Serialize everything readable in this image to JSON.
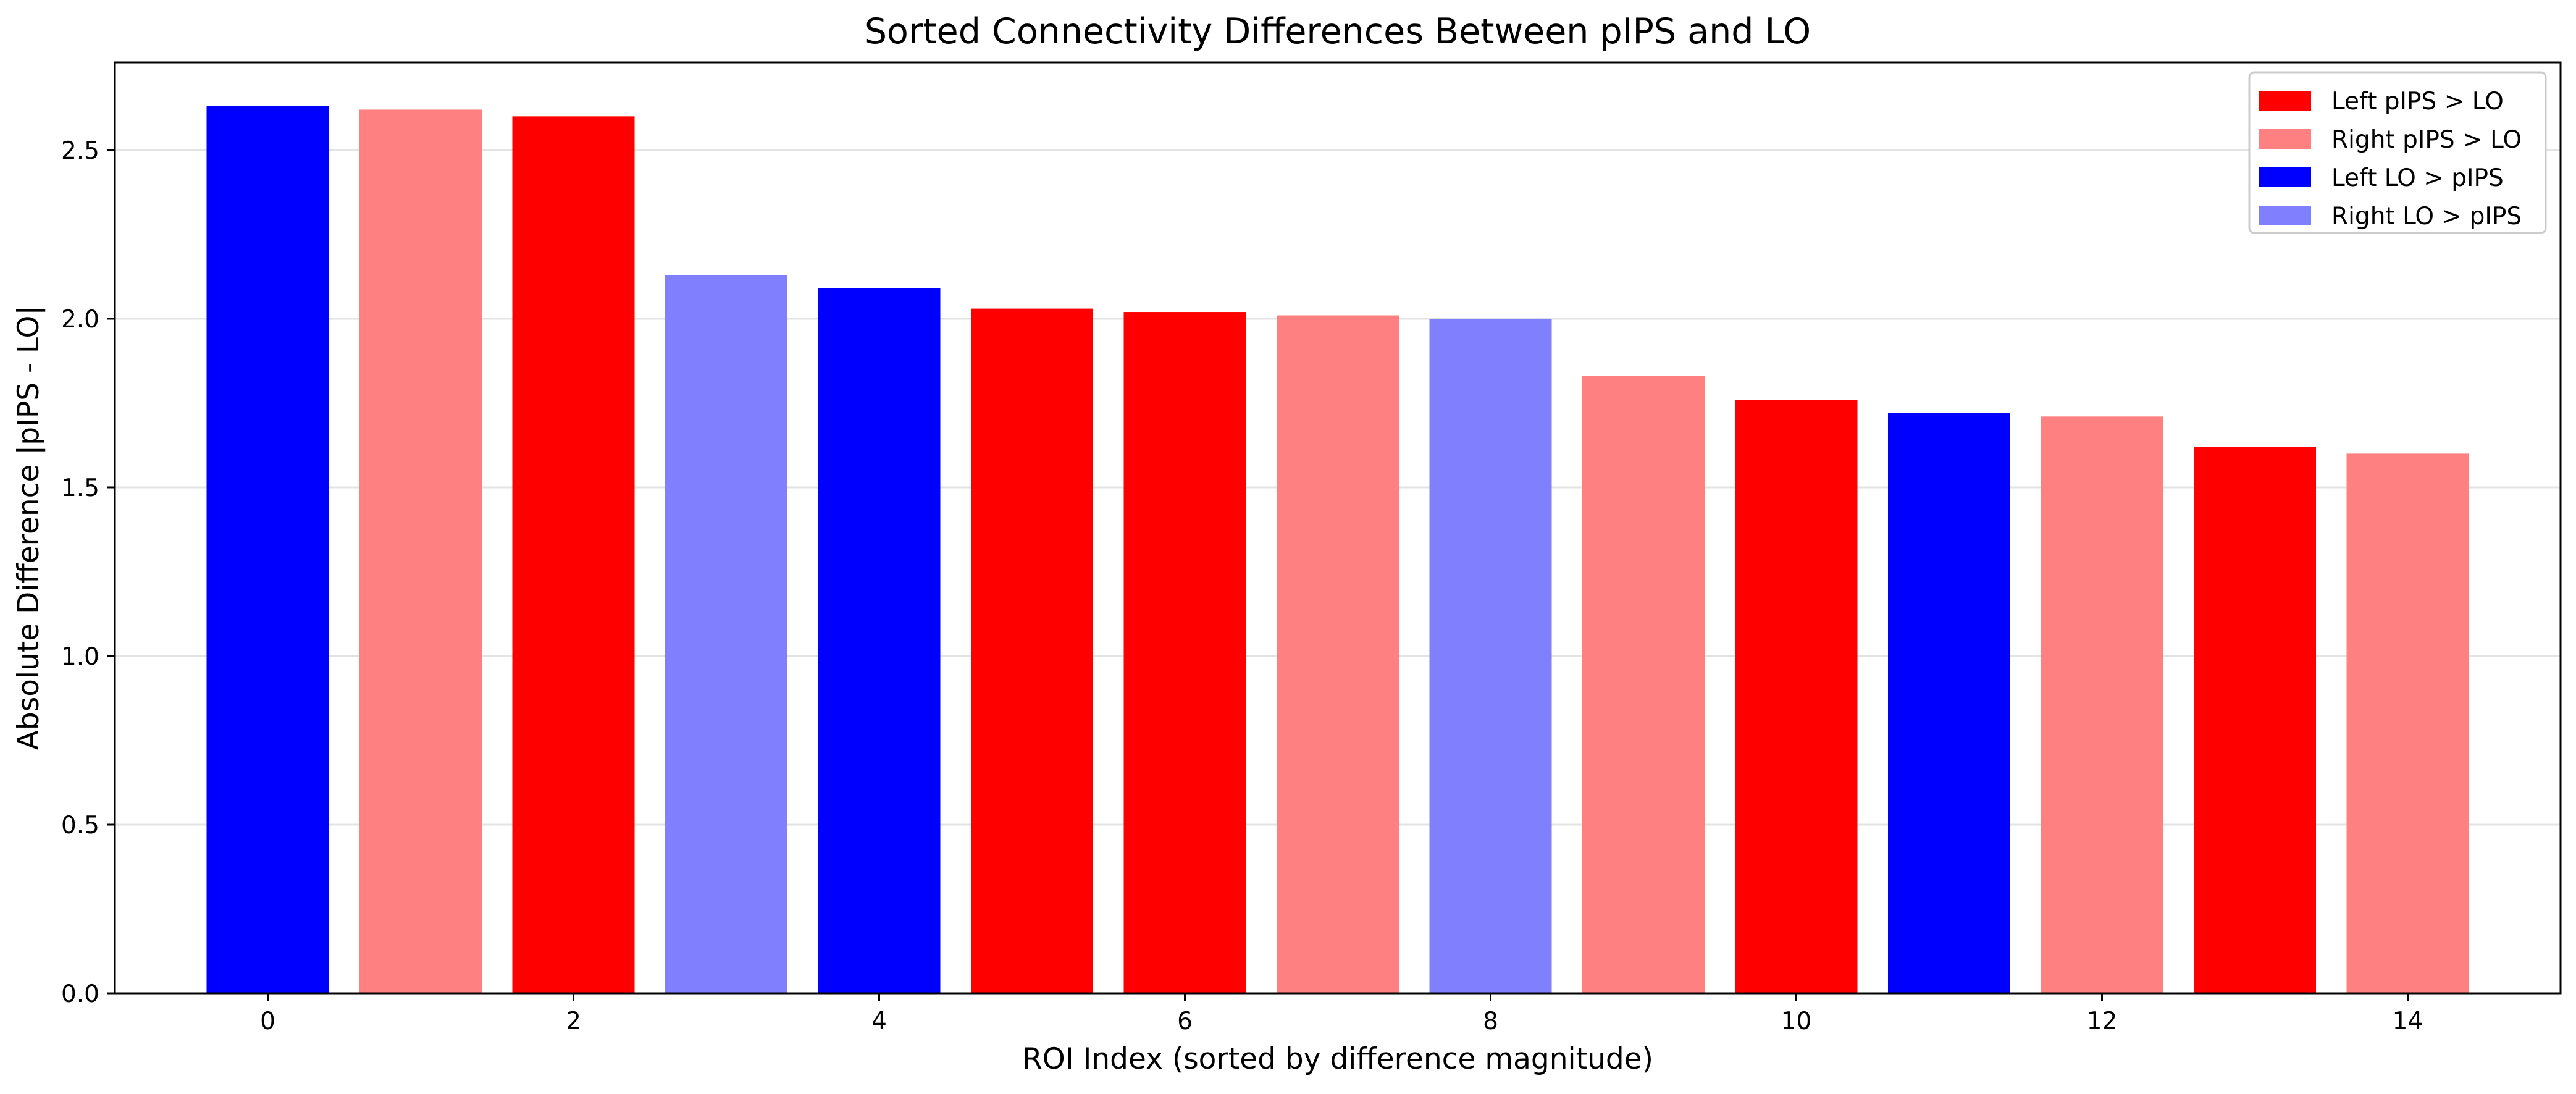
{
  "chart_data": {
    "type": "bar",
    "title": "Sorted Connectivity Differences Between pIPS and LO",
    "xlabel": "ROI Index (sorted by difference magnitude)",
    "ylabel": "Absolute Difference |pIPS - LO|",
    "x": [
      0,
      1,
      2,
      3,
      4,
      5,
      6,
      7,
      8,
      9,
      10,
      11,
      12,
      13,
      14
    ],
    "values": [
      2.63,
      2.62,
      2.6,
      2.13,
      2.09,
      2.03,
      2.02,
      2.01,
      2.0,
      1.83,
      1.76,
      1.72,
      1.71,
      1.62,
      1.6
    ],
    "groups": [
      "left-lo",
      "right-pips",
      "left-pips",
      "right-lo",
      "left-lo",
      "left-pips",
      "left-pips",
      "right-pips",
      "right-lo",
      "right-pips",
      "left-pips",
      "left-lo",
      "right-pips",
      "left-pips",
      "right-pips"
    ],
    "xlim": [
      -1,
      15
    ],
    "ylim": [
      0,
      2.76
    ],
    "xticks": [
      0,
      2,
      4,
      6,
      8,
      10,
      12,
      14
    ],
    "yticks": [
      0.0,
      0.5,
      1.0,
      1.5,
      2.0,
      2.5
    ],
    "ytick_labels": [
      "0.0",
      "0.5",
      "1.0",
      "1.5",
      "2.0",
      "2.5"
    ],
    "grid": "y",
    "legend_position": "top-right",
    "legend": [
      {
        "key": "left-pips",
        "label": "Left pIPS > LO",
        "color": "#ff0000"
      },
      {
        "key": "right-pips",
        "label": "Right pIPS > LO",
        "color": "#ff8080"
      },
      {
        "key": "left-lo",
        "label": "Left LO > pIPS",
        "color": "#0000ff"
      },
      {
        "key": "right-lo",
        "label": "Right LO > pIPS",
        "color": "#8080ff"
      }
    ]
  }
}
